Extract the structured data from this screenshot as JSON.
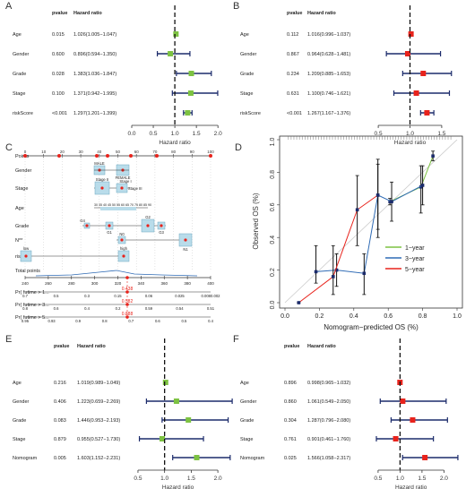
{
  "colors": {
    "green": "#7dc242",
    "red": "#e8231c",
    "navy": "#1c2b6b",
    "blue": "#2f6bb5",
    "nomo_box": "#b9dcea"
  },
  "forest_common": {
    "xlabel": "Hazard ratio",
    "h_pvalue": "pvalue",
    "h_hr": "Hazard ratio",
    "ticks": [
      0.5,
      1.0,
      1.5,
      2.0
    ]
  },
  "chart_data": [
    {
      "type": "forest",
      "panel": "A",
      "color": "green",
      "xlim": [
        0,
        2.1
      ],
      "xticks": [
        "0.0",
        "0.5",
        "1.0",
        "1.5",
        "2.0"
      ],
      "rows": [
        {
          "label": "Age",
          "pvalue": "0.015",
          "hr_text": "1.026(1.005−1.047)",
          "hr": 1.026,
          "lo": 1.005,
          "hi": 1.047
        },
        {
          "label": "Gender",
          "pvalue": "0.600",
          "hr_text": "0.896(0.594−1.350)",
          "hr": 0.896,
          "lo": 0.594,
          "hi": 1.35
        },
        {
          "label": "Grade",
          "pvalue": "0.028",
          "hr_text": "1.383(1.036−1.847)",
          "hr": 1.383,
          "lo": 1.036,
          "hi": 1.847
        },
        {
          "label": "Stage",
          "pvalue": "0.100",
          "hr_text": "1.371(0.942−1.995)",
          "hr": 1.371,
          "lo": 0.942,
          "hi": 1.995
        },
        {
          "label": "riskScore",
          "pvalue": "<0.001",
          "hr_text": "1.297(1.201−1.399)",
          "hr": 1.297,
          "lo": 1.201,
          "hi": 1.399
        }
      ]
    },
    {
      "type": "forest",
      "panel": "B",
      "color": "red",
      "xlim": [
        0.4,
        1.6
      ],
      "xticks": [
        "0.5",
        "1.0",
        "1.5"
      ],
      "rows": [
        {
          "label": "Age",
          "pvalue": "0.112",
          "hr_text": "1.016(0.996−1.037)",
          "hr": 1.016,
          "lo": 0.996,
          "hi": 1.037
        },
        {
          "label": "Gender",
          "pvalue": "0.867",
          "hr_text": "0.964(0.628−1.481)",
          "hr": 0.964,
          "lo": 0.628,
          "hi": 1.481
        },
        {
          "label": "Grade",
          "pvalue": "0.234",
          "hr_text": "1.209(0.885−1.653)",
          "hr": 1.209,
          "lo": 0.885,
          "hi": 1.653
        },
        {
          "label": "Stage",
          "pvalue": "0.631",
          "hr_text": "1.100(0.746−1.621)",
          "hr": 1.1,
          "lo": 0.746,
          "hi": 1.621
        },
        {
          "label": "riskScore",
          "pvalue": "<0.001",
          "hr_text": "1.267(1.167−1.376)",
          "hr": 1.267,
          "lo": 1.167,
          "hi": 1.376
        }
      ]
    },
    {
      "type": "nomogram",
      "panel": "C",
      "rows": [
        "Points",
        "Gender",
        "Stage",
        "Age",
        "Grade",
        "N**",
        "risk***",
        "Total points",
        "Pr( futime > 1...",
        "Pr( futime > 3...",
        "Pr( futime > 5..."
      ],
      "points_ticks": [
        "0",
        "10",
        "20",
        "30",
        "40",
        "50",
        "60",
        "70",
        "80",
        "90",
        "100"
      ],
      "total_ticks": [
        "240",
        "260",
        "280",
        "300",
        "320",
        "340",
        "360",
        "380",
        "400"
      ],
      "labels": {
        "male": "MALE",
        "female": "FEMALE",
        "stage2": "Stage II",
        "stage3": "Stage III",
        "stage1": "Stage I",
        "g4": "G4",
        "g1": "G1",
        "g2": "G2",
        "g3": "G3",
        "n0": "N0",
        "n1": "N1",
        "age_ticks": "30 35 40 45 50 55 60 65 70 75 80 85 90",
        "risk_low": "low",
        "risk_high": "high"
      },
      "pr1": [
        "0.7",
        "0.5",
        "0.3",
        "0.15",
        "0.06",
        "0.025",
        "0.0080.002"
      ],
      "pr1_val": "0.438",
      "pr3": [
        "0.8",
        "0.6",
        "0.4",
        "0.2",
        "0.59",
        "0.54",
        "0.51"
      ],
      "pr3_val": "0.582",
      "pr5": [
        "0.95",
        "0.93",
        "0.9",
        "0.8",
        "0.7",
        "0.6",
        "0.5",
        "0.4"
      ],
      "pr5_val": "0.888"
    },
    {
      "type": "line",
      "panel": "D",
      "xlabel": "Nomogram−predicted OS (%)",
      "ylabel": "Observed OS (%)",
      "xlim": [
        0,
        1
      ],
      "ylim": [
        0,
        1
      ],
      "xticks": [
        "0.0",
        "0.2",
        "0.4",
        "0.6",
        "0.8",
        "1.0"
      ],
      "yticks": [
        "0.0",
        "0.2",
        "0.4",
        "0.6",
        "0.8",
        "1.0"
      ],
      "series": [
        {
          "name": "1−year",
          "color": "green",
          "x": [
            0.61,
            0.79,
            0.86
          ],
          "y": [
            0.62,
            0.71,
            0.9
          ],
          "lo": [
            0.6,
            0.55,
            0.87
          ],
          "hi": [
            0.64,
            0.84,
            0.93
          ]
        },
        {
          "name": "3−year",
          "color": "blue",
          "x": [
            0.18,
            0.3,
            0.46,
            0.54,
            0.62,
            0.8
          ],
          "y": [
            0.19,
            0.2,
            0.18,
            0.66,
            0.62,
            0.72
          ],
          "lo": [
            0.12,
            0.1,
            0.05,
            0.4,
            0.5,
            0.6
          ],
          "hi": [
            0.35,
            0.3,
            0.3,
            0.85,
            0.74,
            0.84
          ]
        },
        {
          "name": "5−year",
          "color": "red",
          "x": [
            0.08,
            0.28,
            0.42,
            0.54
          ],
          "y": [
            0.0,
            0.16,
            0.57,
            0.66
          ],
          "lo": [
            0,
            0.05,
            0.35,
            0.45
          ],
          "hi": [
            0,
            0.35,
            0.78,
            0.88
          ]
        }
      ]
    },
    {
      "type": "forest",
      "panel": "E",
      "color": "green",
      "xlim": [
        0.4,
        2.2
      ],
      "xticks": [
        "0.5",
        "1.0",
        "1.5",
        "2.0"
      ],
      "rows": [
        {
          "label": "Age",
          "pvalue": "0.216",
          "hr_text": "1.019(0.989−1.049)",
          "hr": 1.019,
          "lo": 0.989,
          "hi": 1.049
        },
        {
          "label": "Gender",
          "pvalue": "0.406",
          "hr_text": "1.223(0.659−2.269)",
          "hr": 1.223,
          "lo": 0.659,
          "hi": 2.269
        },
        {
          "label": "Grade",
          "pvalue": "0.083",
          "hr_text": "1.446(0.953−2.193)",
          "hr": 1.446,
          "lo": 0.953,
          "hi": 2.193
        },
        {
          "label": "Stage",
          "pvalue": "0.879",
          "hr_text": "0.955(0.527−1.730)",
          "hr": 0.955,
          "lo": 0.527,
          "hi": 1.73
        },
        {
          "label": "Nomogram",
          "pvalue": "0.005",
          "hr_text": "1.603(1.152−2.231)",
          "hr": 1.603,
          "lo": 1.152,
          "hi": 2.231
        }
      ]
    },
    {
      "type": "forest",
      "panel": "F",
      "color": "red",
      "xlim": [
        0.4,
        2.4
      ],
      "xticks": [
        "0.5",
        "1.0",
        "1.5",
        "2.0"
      ],
      "rows": [
        {
          "label": "Age",
          "pvalue": "0.896",
          "hr_text": "0.998(0.965−1.032)",
          "hr": 0.998,
          "lo": 0.965,
          "hi": 1.032
        },
        {
          "label": "Gender",
          "pvalue": "0.860",
          "hr_text": "1.061(0.549−2.050)",
          "hr": 1.061,
          "lo": 0.549,
          "hi": 2.05
        },
        {
          "label": "Grade",
          "pvalue": "0.304",
          "hr_text": "1.287(0.796−2.080)",
          "hr": 1.287,
          "lo": 0.796,
          "hi": 2.08
        },
        {
          "label": "Stage",
          "pvalue": "0.761",
          "hr_text": "0.901(0.461−1.760)",
          "hr": 0.901,
          "lo": 0.461,
          "hi": 1.76
        },
        {
          "label": "Nomogram",
          "pvalue": "0.025",
          "hr_text": "1.566(1.058−2.317)",
          "hr": 1.566,
          "lo": 1.058,
          "hi": 2.317
        }
      ]
    }
  ]
}
